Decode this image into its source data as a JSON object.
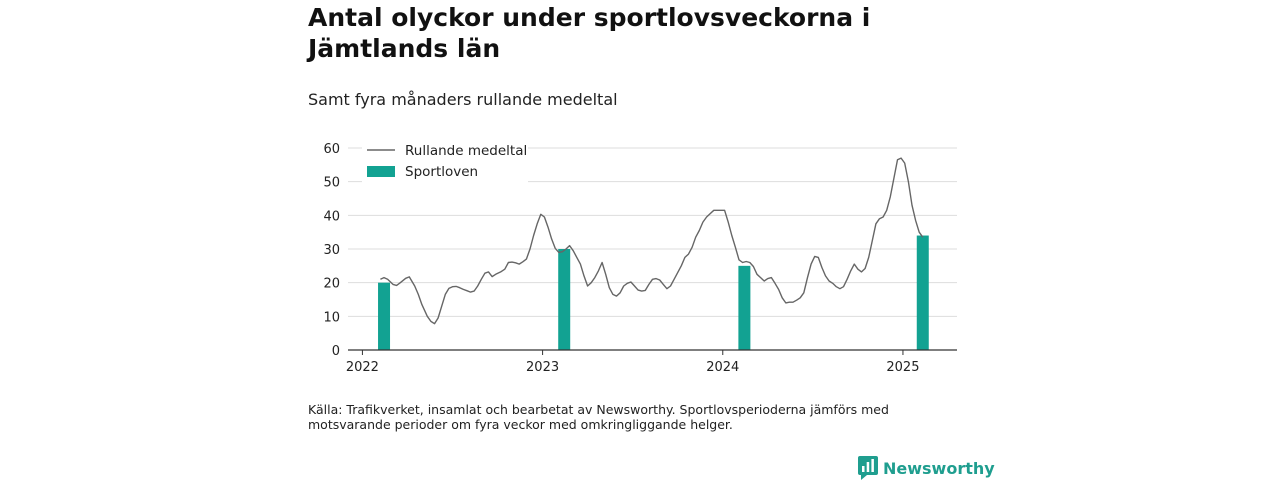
{
  "title": "Antal olyckor under sportlovsveckorna i Jämtlands län",
  "subtitle": "Samt fyra månaders rullande medeltal",
  "footnote": "Källa: Trafikverket, insamlat och bearbetat av Newsworthy. Sportlovsperioderna jämförs med motsvarande perioder om fyra veckor med omkringliggande helger.",
  "brand": {
    "name": "Newsworthy",
    "icon": "newsworthy-logo-icon"
  },
  "colors": {
    "line": "#666666",
    "bar": "#12a292",
    "grid": "#dddddd",
    "axis": "#333333",
    "brand": "#1f9e8f"
  },
  "chart_data": {
    "type": "bar+line",
    "title": "Antal olyckor under sportlovsveckorna i Jämtlands län",
    "subtitle": "Samt fyra månaders rullande medeltal",
    "xlabel": "",
    "ylabel": "",
    "ylim": [
      0,
      60
    ],
    "yticks": [
      0,
      10,
      20,
      30,
      40,
      50,
      60
    ],
    "xticks": [
      2022,
      2023,
      2024,
      2025
    ],
    "xlim": [
      2021.92,
      2025.3
    ],
    "grid": true,
    "legend_position": "top-left",
    "series": [
      {
        "name": "Rullande medeltal",
        "type": "line",
        "points": [
          [
            2022.1,
            21.0
          ],
          [
            2022.12,
            21.5
          ],
          [
            2022.14,
            21.0
          ],
          [
            2022.17,
            19.5
          ],
          [
            2022.19,
            19.2
          ],
          [
            2022.21,
            20.0
          ],
          [
            2022.24,
            21.3
          ],
          [
            2022.26,
            21.7
          ],
          [
            2022.29,
            19.0
          ],
          [
            2022.31,
            16.5
          ],
          [
            2022.33,
            13.5
          ],
          [
            2022.36,
            10.0
          ],
          [
            2022.38,
            8.5
          ],
          [
            2022.4,
            7.8
          ],
          [
            2022.42,
            9.5
          ],
          [
            2022.44,
            13.0
          ],
          [
            2022.46,
            16.5
          ],
          [
            2022.48,
            18.3
          ],
          [
            2022.5,
            18.8
          ],
          [
            2022.52,
            18.9
          ],
          [
            2022.54,
            18.5
          ],
          [
            2022.56,
            18.0
          ],
          [
            2022.58,
            17.6
          ],
          [
            2022.6,
            17.2
          ],
          [
            2022.62,
            17.5
          ],
          [
            2022.64,
            19.0
          ],
          [
            2022.66,
            21.0
          ],
          [
            2022.68,
            22.8
          ],
          [
            2022.7,
            23.2
          ],
          [
            2022.72,
            21.8
          ],
          [
            2022.74,
            22.5
          ],
          [
            2022.77,
            23.3
          ],
          [
            2022.79,
            24.0
          ],
          [
            2022.81,
            26.0
          ],
          [
            2022.83,
            26.1
          ],
          [
            2022.85,
            25.9
          ],
          [
            2022.87,
            25.5
          ],
          [
            2022.89,
            26.2
          ],
          [
            2022.91,
            27.0
          ],
          [
            2022.93,
            30.0
          ],
          [
            2022.95,
            34.0
          ],
          [
            2022.97,
            37.5
          ],
          [
            2022.99,
            40.3
          ],
          [
            2023.01,
            39.5
          ],
          [
            2023.03,
            36.5
          ],
          [
            2023.05,
            33.0
          ],
          [
            2023.07,
            30.2
          ],
          [
            2023.09,
            29.0
          ],
          [
            2023.11,
            29.2
          ],
          [
            2023.13,
            30.0
          ],
          [
            2023.15,
            31.0
          ],
          [
            2023.17,
            29.5
          ],
          [
            2023.19,
            27.5
          ],
          [
            2023.21,
            25.5
          ],
          [
            2023.23,
            22.0
          ],
          [
            2023.25,
            19.0
          ],
          [
            2023.27,
            20.0
          ],
          [
            2023.29,
            21.5
          ],
          [
            2023.31,
            23.5
          ],
          [
            2023.33,
            26.0
          ],
          [
            2023.35,
            22.5
          ],
          [
            2023.37,
            18.5
          ],
          [
            2023.39,
            16.5
          ],
          [
            2023.41,
            16.0
          ],
          [
            2023.43,
            17.0
          ],
          [
            2023.45,
            19.0
          ],
          [
            2023.47,
            19.8
          ],
          [
            2023.49,
            20.2
          ],
          [
            2023.51,
            19.0
          ],
          [
            2023.53,
            17.8
          ],
          [
            2023.55,
            17.5
          ],
          [
            2023.57,
            17.7
          ],
          [
            2023.59,
            19.5
          ],
          [
            2023.61,
            21.0
          ],
          [
            2023.63,
            21.2
          ],
          [
            2023.65,
            20.8
          ],
          [
            2023.67,
            19.5
          ],
          [
            2023.69,
            18.2
          ],
          [
            2023.71,
            19.0
          ],
          [
            2023.73,
            21.0
          ],
          [
            2023.75,
            23.0
          ],
          [
            2023.77,
            25.0
          ],
          [
            2023.79,
            27.5
          ],
          [
            2023.81,
            28.5
          ],
          [
            2023.83,
            30.5
          ],
          [
            2023.85,
            33.5
          ],
          [
            2023.87,
            35.5
          ],
          [
            2023.89,
            38.0
          ],
          [
            2023.91,
            39.5
          ],
          [
            2023.93,
            40.5
          ],
          [
            2023.95,
            41.5
          ],
          [
            2023.97,
            41.5
          ],
          [
            2023.99,
            41.5
          ],
          [
            2024.01,
            41.5
          ],
          [
            2024.03,
            38.0
          ],
          [
            2024.05,
            34.0
          ],
          [
            2024.07,
            30.5
          ],
          [
            2024.09,
            26.8
          ],
          [
            2024.11,
            26.0
          ],
          [
            2024.13,
            26.3
          ],
          [
            2024.15,
            26.0
          ],
          [
            2024.17,
            24.8
          ],
          [
            2024.19,
            22.5
          ],
          [
            2024.21,
            21.5
          ],
          [
            2024.23,
            20.5
          ],
          [
            2024.25,
            21.2
          ],
          [
            2024.27,
            21.5
          ],
          [
            2024.29,
            19.8
          ],
          [
            2024.31,
            18.0
          ],
          [
            2024.33,
            15.5
          ],
          [
            2024.35,
            14.0
          ],
          [
            2024.37,
            14.2
          ],
          [
            2024.39,
            14.2
          ],
          [
            2024.41,
            14.8
          ],
          [
            2024.43,
            15.5
          ],
          [
            2024.45,
            17.0
          ],
          [
            2024.47,
            21.5
          ],
          [
            2024.49,
            25.5
          ],
          [
            2024.51,
            27.8
          ],
          [
            2024.53,
            27.5
          ],
          [
            2024.55,
            24.5
          ],
          [
            2024.57,
            22.0
          ],
          [
            2024.59,
            20.5
          ],
          [
            2024.61,
            19.8
          ],
          [
            2024.63,
            18.8
          ],
          [
            2024.65,
            18.2
          ],
          [
            2024.67,
            18.8
          ],
          [
            2024.69,
            21.0
          ],
          [
            2024.71,
            23.5
          ],
          [
            2024.73,
            25.5
          ],
          [
            2024.75,
            24.0
          ],
          [
            2024.77,
            23.2
          ],
          [
            2024.79,
            24.2
          ],
          [
            2024.81,
            27.5
          ],
          [
            2024.83,
            32.5
          ],
          [
            2024.85,
            37.5
          ],
          [
            2024.87,
            39.0
          ],
          [
            2024.89,
            39.5
          ],
          [
            2024.91,
            41.5
          ],
          [
            2024.93,
            45.5
          ],
          [
            2024.95,
            51.0
          ],
          [
            2024.97,
            56.5
          ],
          [
            2024.99,
            57.0
          ],
          [
            2025.01,
            55.5
          ],
          [
            2025.03,
            50.0
          ],
          [
            2025.05,
            43.0
          ],
          [
            2025.07,
            38.5
          ],
          [
            2025.09,
            35.0
          ],
          [
            2025.11,
            33.5
          ]
        ]
      },
      {
        "name": "Sportloven",
        "type": "bar",
        "x": [
          2022.12,
          2023.12,
          2024.12,
          2025.11
        ],
        "values": [
          20,
          30,
          25,
          34
        ]
      }
    ]
  }
}
